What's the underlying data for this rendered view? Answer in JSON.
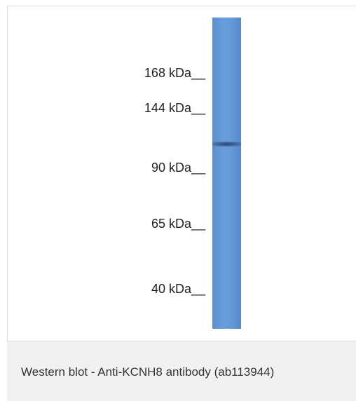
{
  "figure": {
    "markers": [
      "168 kDa__",
      "144 kDa__",
      "90 kDa__",
      "65 kDa__",
      "40 kDa__"
    ],
    "caption": "Western blot - Anti-KCNH8 antibody (ab113944)"
  }
}
